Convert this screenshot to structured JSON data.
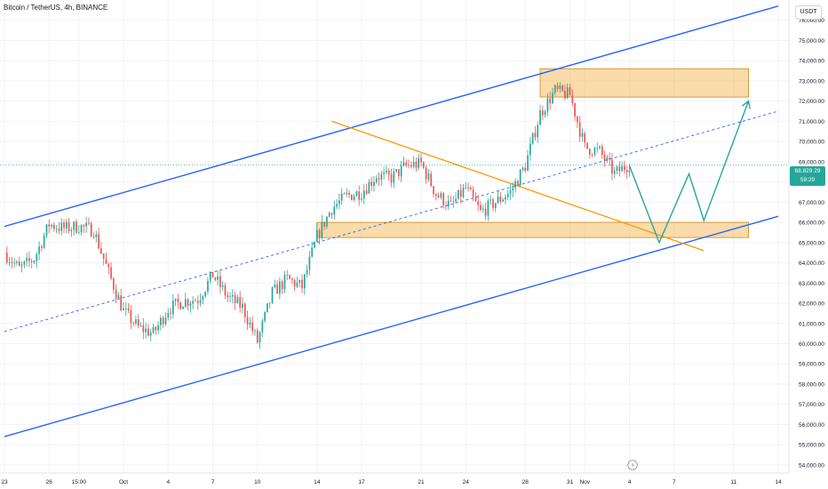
{
  "header": {
    "symbol_title": "Bitcoin / TetherUS, 4h, BINANCE",
    "currency": "USDT"
  },
  "price_tag": {
    "price": "68,829.29",
    "countdown": "59:29"
  },
  "colors": {
    "channel": "#2962ff",
    "trendline": "#ff9800",
    "zone_fill": "#f5b041",
    "zone_border": "#c98a1a",
    "projection": "#26a69a",
    "bull": "#26a69a",
    "bear": "#ef5350"
  },
  "icons": [
    "tradingview-logo-icon"
  ],
  "chart_data": {
    "type": "candlestick",
    "x_start": "2024-09-23",
    "x_end": "2024-11-14",
    "interval": "4h",
    "y_range": [
      53600,
      77000
    ],
    "y_ticks": [
      54000,
      55000,
      56000,
      57000,
      58000,
      59000,
      60000,
      61000,
      62000,
      63000,
      64000,
      65000,
      66000,
      67000,
      68000,
      69000,
      70000,
      71000,
      72000,
      73000,
      74000,
      75000,
      76000
    ],
    "y_tick_labels": [
      "54,000.00",
      "55,000.00",
      "56,000.00",
      "57,000.00",
      "58,000.00",
      "59,000.00",
      "60,000.00",
      "61,000.00",
      "62,000.00",
      "63,000.00",
      "64,000.00",
      "65,000.00",
      "66,000.00",
      "67,000.00",
      "68,000.00",
      "69,000.00",
      "70,000.00",
      "71,000.00",
      "72,000.00",
      "73,000.00",
      "74,000.00",
      "75,000.00",
      "76,000.00"
    ],
    "x_ticks": [
      {
        "date": "2024-09-23",
        "label": "23"
      },
      {
        "date": "2024-09-26",
        "label": "26"
      },
      {
        "date": "2024-09-28",
        "label": "15:00"
      },
      {
        "date": "2024-10-01",
        "label": "Oct"
      },
      {
        "date": "2024-10-04",
        "label": "4"
      },
      {
        "date": "2024-10-07",
        "label": "7"
      },
      {
        "date": "2024-10-10",
        "label": "10"
      },
      {
        "date": "2024-10-14",
        "label": "14"
      },
      {
        "date": "2024-10-17",
        "label": "17"
      },
      {
        "date": "2024-10-21",
        "label": "21"
      },
      {
        "date": "2024-10-24",
        "label": "24"
      },
      {
        "date": "2024-10-28",
        "label": "28"
      },
      {
        "date": "2024-10-31",
        "label": "31"
      },
      {
        "date": "2024-11-01",
        "label": "Nov"
      },
      {
        "date": "2024-11-04",
        "label": "4"
      },
      {
        "date": "2024-11-07",
        "label": "7"
      },
      {
        "date": "2024-11-11",
        "label": "11"
      },
      {
        "date": "2024-11-14",
        "label": "14"
      }
    ],
    "last_price": 68829.29,
    "price_path": [
      [
        "2024-09-23",
        64500
      ],
      [
        "2024-09-24",
        63700
      ],
      [
        "2024-09-25",
        64200
      ],
      [
        "2024-09-26",
        65900
      ],
      [
        "2024-09-27",
        65700
      ],
      [
        "2024-09-28",
        65800
      ],
      [
        "2024-09-29",
        65600
      ],
      [
        "2024-09-30",
        63500
      ],
      [
        "2024-10-01",
        61600
      ],
      [
        "2024-10-02",
        60800
      ],
      [
        "2024-10-03",
        60500
      ],
      [
        "2024-10-04",
        61700
      ],
      [
        "2024-10-05",
        62100
      ],
      [
        "2024-10-06",
        62200
      ],
      [
        "2024-10-07",
        63400
      ],
      [
        "2024-10-08",
        62300
      ],
      [
        "2024-10-09",
        61800
      ],
      [
        "2024-10-10",
        60100
      ],
      [
        "2024-10-11",
        62500
      ],
      [
        "2024-10-12",
        63200
      ],
      [
        "2024-10-13",
        62800
      ],
      [
        "2024-10-14",
        65300
      ],
      [
        "2024-10-15",
        66700
      ],
      [
        "2024-10-16",
        67300
      ],
      [
        "2024-10-17",
        67500
      ],
      [
        "2024-10-18",
        68300
      ],
      [
        "2024-10-19",
        68200
      ],
      [
        "2024-10-20",
        68800
      ],
      [
        "2024-10-21",
        68900
      ],
      [
        "2024-10-22",
        67400
      ],
      [
        "2024-10-23",
        66800
      ],
      [
        "2024-10-24",
        67700
      ],
      [
        "2024-10-25",
        66500
      ],
      [
        "2024-10-26",
        67000
      ],
      [
        "2024-10-27",
        67500
      ],
      [
        "2024-10-28",
        68800
      ],
      [
        "2024-10-29",
        71400
      ],
      [
        "2024-10-30",
        72500
      ],
      [
        "2024-10-31",
        72300
      ],
      [
        "2024-11-01",
        69700
      ],
      [
        "2024-11-02",
        69500
      ],
      [
        "2024-11-03",
        68400
      ],
      [
        "2024-11-04",
        68900
      ]
    ],
    "upper_channel": [
      [
        "2024-09-23",
        65800
      ],
      [
        "2024-11-14",
        76700
      ]
    ],
    "lower_channel": [
      [
        "2024-09-23",
        55400
      ],
      [
        "2024-11-14",
        66300
      ]
    ],
    "mid_channel": [
      [
        "2024-09-23",
        60600
      ],
      [
        "2024-11-14",
        71500
      ]
    ],
    "trendline": [
      [
        "2024-10-15",
        71000
      ],
      [
        "2024-11-09",
        64600
      ]
    ],
    "resistance_zone": {
      "from": "2024-10-29",
      "to": "2024-11-12",
      "low": 72200,
      "high": 73600
    },
    "support_zone": {
      "from": "2024-10-14",
      "to": "2024-11-12",
      "low": 65250,
      "high": 66000
    },
    "projection": [
      [
        "2024-11-04",
        68800
      ],
      [
        "2024-11-06",
        65000
      ],
      [
        "2024-11-08",
        68400
      ],
      [
        "2024-11-09",
        66100
      ],
      [
        "2024-11-12",
        72000
      ]
    ]
  }
}
